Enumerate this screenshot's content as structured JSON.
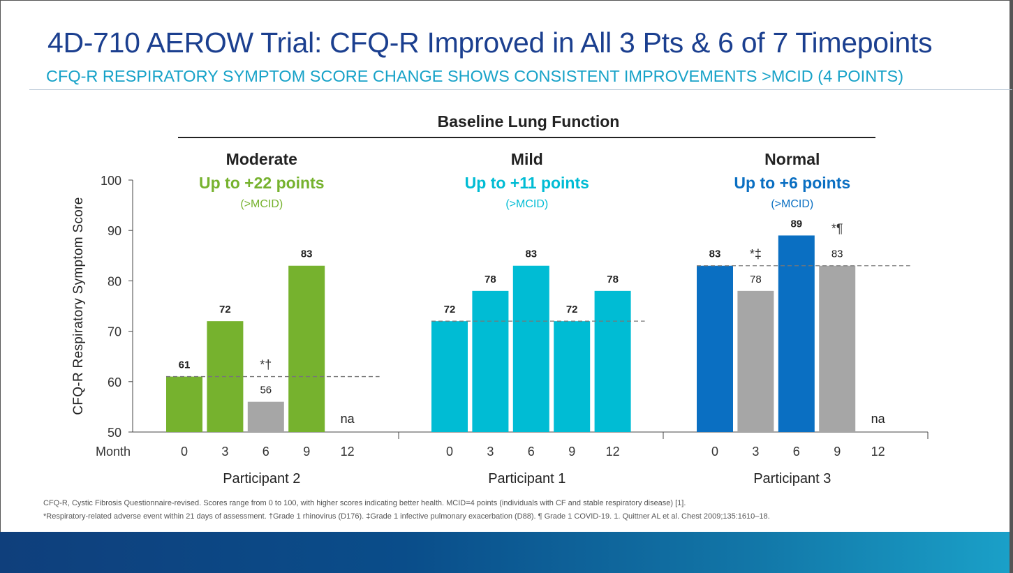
{
  "slide": {
    "title": "4D-710 AEROW Trial: CFQ-R Improved in All 3 Pts & 6 of 7 Timepoints",
    "subtitle": "CFQ-R RESPIRATORY SYMPTOM SCORE CHANGE SHOWS CONSISTENT IMPROVEMENTS >MCID (4 POINTS)",
    "footnotes": [
      "CFQ-R, Cystic Fibrosis Questionnaire-revised. Scores range from 0 to 100, with higher scores indicating better health. MCID=4 points (individuals with CF and stable respiratory disease) [1].",
      "*Respiratory-related adverse event within 21 days of assessment.  †Grade 1 rhinovirus (D176).  ‡Grade 1 infective pulmonary exacerbation (D88).  ¶ Grade 1 COVID-19.  1. Quittner AL et al. Chest 2009;135:1610–18."
    ]
  },
  "colors": {
    "title": "#1b3f8f",
    "subtitle": "#17a2c8",
    "moderate": "#76b22e",
    "mild": "#00bcd4",
    "normal": "#0a6fc2",
    "adverse": "#a6a6a6",
    "baseline_line": "#777777"
  },
  "chart_data": {
    "type": "bar",
    "title": "Baseline Lung Function",
    "ylabel": "CFQ-R Respiratory Symptom Score",
    "xlabel": "Month",
    "ylim": [
      50,
      100
    ],
    "yticks": [
      50,
      60,
      70,
      80,
      90,
      100
    ],
    "categories": [
      "0",
      "3",
      "6",
      "9",
      "12"
    ],
    "groups": [
      {
        "participant": "Participant 2",
        "baseline_function": "Moderate",
        "improvement": "Up to +22 points",
        "mcid_note": "(>MCID)",
        "color": "#76b22e",
        "baseline_value": 61,
        "bars": [
          {
            "month": "0",
            "value": 61,
            "label": "61",
            "adverse": false,
            "note": ""
          },
          {
            "month": "3",
            "value": 72,
            "label": "72",
            "adverse": false,
            "note": ""
          },
          {
            "month": "6",
            "value": 56,
            "label": "56",
            "adverse": true,
            "note": "*†"
          },
          {
            "month": "9",
            "value": 83,
            "label": "83",
            "adverse": false,
            "note": ""
          },
          {
            "month": "12",
            "value": null,
            "label": "na",
            "adverse": false,
            "note": ""
          }
        ]
      },
      {
        "participant": "Participant 1",
        "baseline_function": "Mild",
        "improvement": "Up to +11 points",
        "mcid_note": "(>MCID)",
        "color": "#00bcd4",
        "baseline_value": 72,
        "bars": [
          {
            "month": "0",
            "value": 72,
            "label": "72",
            "adverse": false,
            "note": ""
          },
          {
            "month": "3",
            "value": 78,
            "label": "78",
            "adverse": false,
            "note": ""
          },
          {
            "month": "6",
            "value": 83,
            "label": "83",
            "adverse": false,
            "note": ""
          },
          {
            "month": "9",
            "value": 72,
            "label": "72",
            "adverse": false,
            "note": ""
          },
          {
            "month": "12",
            "value": 78,
            "label": "78",
            "adverse": false,
            "note": ""
          }
        ]
      },
      {
        "participant": "Participant 3",
        "baseline_function": "Normal",
        "improvement": "Up to +6 points",
        "mcid_note": "(>MCID)",
        "color": "#0a6fc2",
        "baseline_value": 83,
        "bars": [
          {
            "month": "0",
            "value": 83,
            "label": "83",
            "adverse": false,
            "note": ""
          },
          {
            "month": "3",
            "value": 78,
            "label": "78",
            "adverse": true,
            "note": "*‡"
          },
          {
            "month": "6",
            "value": 89,
            "label": "89",
            "adverse": false,
            "note": ""
          },
          {
            "month": "9",
            "value": 83,
            "label": "83",
            "adverse": true,
            "note": "*¶"
          },
          {
            "month": "12",
            "value": null,
            "label": "na",
            "adverse": false,
            "note": ""
          }
        ]
      }
    ]
  }
}
